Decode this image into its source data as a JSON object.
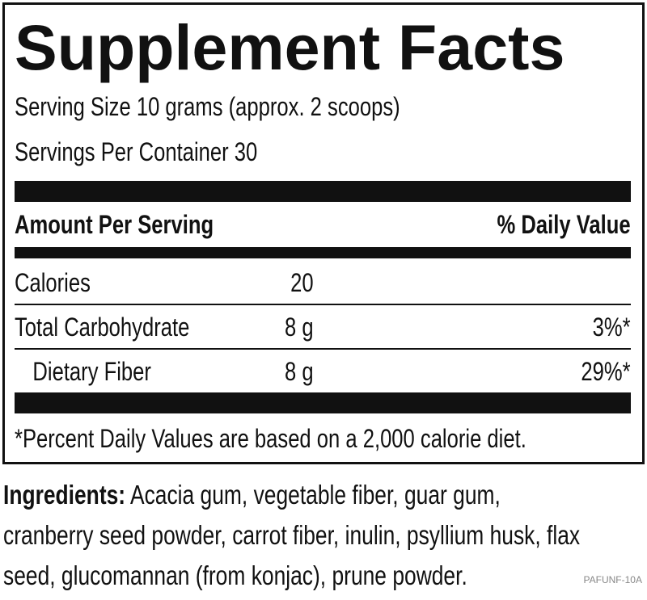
{
  "title": "Supplement Facts",
  "serving_size": "Serving Size 10 grams (approx. 2 scoops)",
  "servings_per_container": "Servings Per Container 30",
  "table": {
    "header": {
      "amount": "Amount Per Serving",
      "daily_value": "% Daily Value"
    },
    "rows": [
      {
        "name": "Calories",
        "amount": "20"
      },
      {
        "name": "Total Carbohydrate",
        "amount": "8 g",
        "daily_value": "3%*"
      },
      {
        "name": "Dietary Fiber",
        "amount": "8 g",
        "daily_value": "29%*"
      }
    ]
  },
  "footnote": "*Percent Daily Values are based on a 2,000 calorie diet.",
  "ingredients": {
    "label": "Ingredients:",
    "text": "Acacia gum, vegetable fiber, guar gum, cranberry seed powder, carrot fiber, inulin, psyllium husk, flax seed, glucomannan (from konjac), prune powder."
  },
  "code": "PAFUNF-10A"
}
